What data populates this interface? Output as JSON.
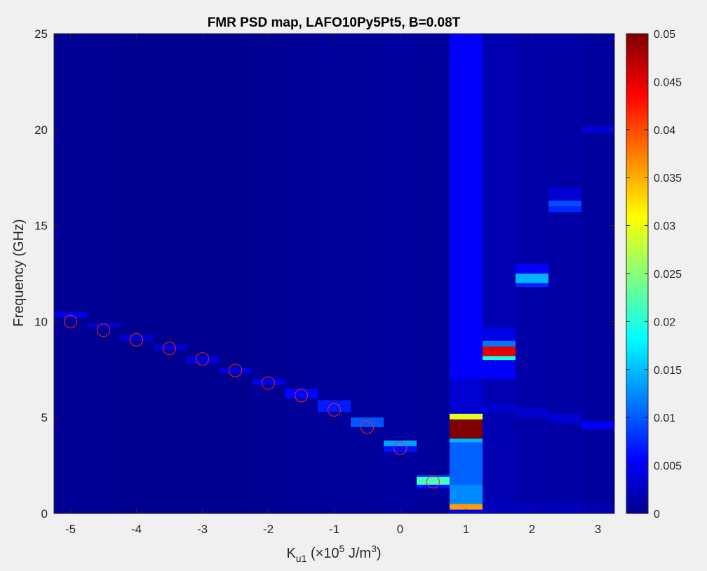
{
  "chart_data": {
    "type": "heatmap",
    "title": "FMR PSD map, LAFO10Py5Pt5, B=0.08T",
    "xlabel": {
      "main": "K",
      "sub": "u1",
      "mid": " (×10",
      "sup": "5",
      "end": " J/m",
      "sup2": "3",
      "close": ")"
    },
    "ylabel": "Frequency (GHz)",
    "xlim": [
      -5.25,
      3.25
    ],
    "ylim": [
      0,
      25
    ],
    "xticks": [
      "-5",
      "-4",
      "-3",
      "-2",
      "-1",
      "0",
      "1",
      "2",
      "3"
    ],
    "xtick_values": [
      -5,
      -4,
      -3,
      -2,
      -1,
      0,
      1,
      2,
      3
    ],
    "yticks": [
      "0",
      "5",
      "10",
      "15",
      "20",
      "25"
    ],
    "ytick_values": [
      0,
      5,
      10,
      15,
      20,
      25
    ],
    "colormap": "jet",
    "clim": [
      0,
      0.05
    ],
    "colorbar_ticks": [
      "0",
      "0.005",
      "0.01",
      "0.015",
      "0.02",
      "0.025",
      "0.03",
      "0.035",
      "0.04",
      "0.045",
      "0.05"
    ],
    "colorbar_tick_values": [
      0,
      0.005,
      0.01,
      0.015,
      0.02,
      0.025,
      0.03,
      0.035,
      0.04,
      0.045,
      0.05
    ],
    "background_value": 0.0012,
    "columns": [
      {
        "x": -5.0,
        "base": 0.001,
        "peaks": [
          {
            "f0": 10.2,
            "f1": 10.5,
            "v": 0.005
          }
        ]
      },
      {
        "x": -4.5,
        "base": 0.0009,
        "peaks": [
          {
            "f0": 9.7,
            "f1": 9.9,
            "v": 0.004
          }
        ]
      },
      {
        "x": -4.0,
        "base": 0.0008,
        "peaks": [
          {
            "f0": 9.0,
            "f1": 9.3,
            "v": 0.004
          }
        ]
      },
      {
        "x": -3.5,
        "base": 0.0008,
        "peaks": [
          {
            "f0": 8.5,
            "f1": 8.8,
            "v": 0.004
          }
        ]
      },
      {
        "x": -3.0,
        "base": 0.0008,
        "peaks": [
          {
            "f0": 7.8,
            "f1": 8.2,
            "v": 0.0045
          }
        ]
      },
      {
        "x": -2.5,
        "base": 0.0008,
        "peaks": [
          {
            "f0": 7.3,
            "f1": 7.6,
            "v": 0.0045
          }
        ]
      },
      {
        "x": -2.0,
        "base": 0.0009,
        "peaks": [
          {
            "f0": 6.7,
            "f1": 7.0,
            "v": 0.0055
          }
        ]
      },
      {
        "x": -1.5,
        "base": 0.0012,
        "peaks": [
          {
            "f0": 6.0,
            "f1": 6.5,
            "v": 0.0065
          }
        ]
      },
      {
        "x": -1.0,
        "base": 0.0013,
        "peaks": [
          {
            "f0": 5.3,
            "f1": 5.9,
            "v": 0.0075
          }
        ]
      },
      {
        "x": -0.5,
        "base": 0.0014,
        "peaks": [
          {
            "f0": 4.5,
            "f1": 5.0,
            "v": 0.0105
          }
        ]
      },
      {
        "x": 0.0,
        "base": 0.0016,
        "peaks": [
          {
            "f0": 3.2,
            "f1": 3.5,
            "v": 0.007
          },
          {
            "f0": 3.5,
            "f1": 3.8,
            "v": 0.014
          }
        ]
      },
      {
        "x": 0.5,
        "base": 0.0014,
        "peaks": [
          {
            "f0": 1.3,
            "f1": 1.5,
            "v": 0.007
          },
          {
            "f0": 1.5,
            "f1": 1.9,
            "v": 0.022
          },
          {
            "f0": 1.9,
            "f1": 2.0,
            "v": 0.01
          }
        ]
      },
      {
        "x": 1.0,
        "base": 0.006,
        "peaks": [
          {
            "f0": 0.2,
            "f1": 0.5,
            "v": 0.036
          },
          {
            "f0": 0.5,
            "f1": 1.5,
            "v": 0.013
          },
          {
            "f0": 1.5,
            "f1": 3.7,
            "v": 0.011
          },
          {
            "f0": 3.7,
            "f1": 3.9,
            "v": 0.015
          },
          {
            "f0": 3.9,
            "f1": 4.9,
            "v": 0.05
          },
          {
            "f0": 4.9,
            "f1": 5.2,
            "v": 0.03
          },
          {
            "f0": 5.2,
            "f1": 7.0,
            "v": 0.004
          }
        ]
      },
      {
        "x": 1.5,
        "base": 0.0025,
        "peaks": [
          {
            "f0": 0.0,
            "f1": 0.6,
            "v": 0.003
          },
          {
            "f0": 5.3,
            "f1": 5.7,
            "v": 0.004
          },
          {
            "f0": 7.0,
            "f1": 8.0,
            "v": 0.006
          },
          {
            "f0": 8.0,
            "f1": 8.2,
            "v": 0.02
          },
          {
            "f0": 8.2,
            "f1": 8.7,
            "v": 0.045
          },
          {
            "f0": 8.7,
            "f1": 9.0,
            "v": 0.012
          },
          {
            "f0": 9.0,
            "f1": 9.7,
            "v": 0.005
          }
        ]
      },
      {
        "x": 2.0,
        "base": 0.002,
        "peaks": [
          {
            "f0": 0.0,
            "f1": 0.5,
            "v": 0.003
          },
          {
            "f0": 5.0,
            "f1": 5.5,
            "v": 0.004
          },
          {
            "f0": 11.8,
            "f1": 12.0,
            "v": 0.008
          },
          {
            "f0": 12.0,
            "f1": 12.5,
            "v": 0.015
          },
          {
            "f0": 12.5,
            "f1": 13.0,
            "v": 0.006
          }
        ]
      },
      {
        "x": 2.5,
        "base": 0.0018,
        "peaks": [
          {
            "f0": 0.0,
            "f1": 0.5,
            "v": 0.003
          },
          {
            "f0": 4.7,
            "f1": 5.2,
            "v": 0.004
          },
          {
            "f0": 15.7,
            "f1": 16.0,
            "v": 0.008
          },
          {
            "f0": 16.0,
            "f1": 16.3,
            "v": 0.01
          },
          {
            "f0": 16.3,
            "f1": 17.0,
            "v": 0.004
          }
        ]
      },
      {
        "x": 3.0,
        "base": 0.0015,
        "peaks": [
          {
            "f0": 0.0,
            "f1": 0.5,
            "v": 0.0025
          },
          {
            "f0": 4.4,
            "f1": 4.8,
            "v": 0.006
          },
          {
            "f0": 19.8,
            "f1": 20.2,
            "v": 0.004
          }
        ]
      }
    ],
    "markers": {
      "color": "#ff2020",
      "points": [
        {
          "x": -5.0,
          "y": 10.0
        },
        {
          "x": -4.5,
          "y": 9.55
        },
        {
          "x": -4.0,
          "y": 9.05
        },
        {
          "x": -3.5,
          "y": 8.6
        },
        {
          "x": -3.0,
          "y": 8.05
        },
        {
          "x": -2.5,
          "y": 7.45
        },
        {
          "x": -2.0,
          "y": 6.8
        },
        {
          "x": -1.5,
          "y": 6.15
        },
        {
          "x": -1.0,
          "y": 5.4
        },
        {
          "x": -0.5,
          "y": 4.5
        },
        {
          "x": 0.0,
          "y": 3.4
        },
        {
          "x": 0.5,
          "y": 1.65
        }
      ]
    }
  }
}
